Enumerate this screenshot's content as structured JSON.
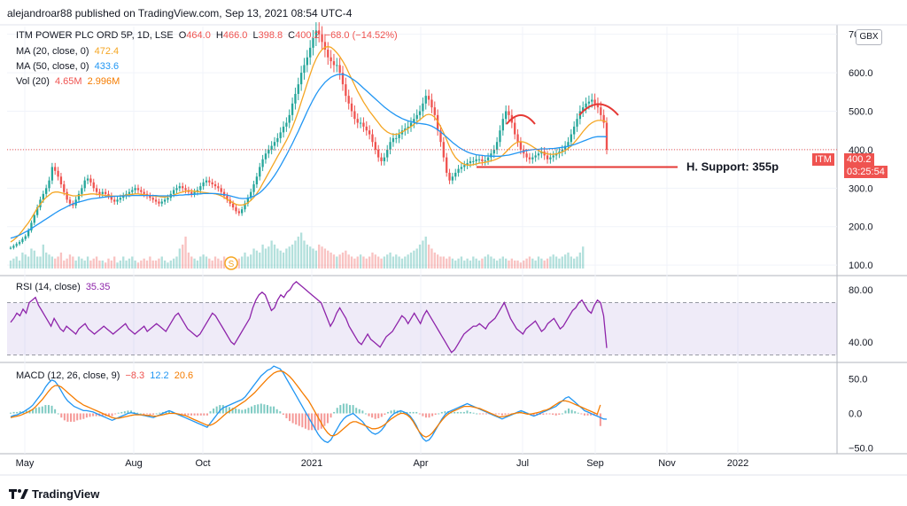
{
  "header": {
    "publisher": "alejandroar88 published on TradingView.com, Sep 13, 2021 08:54 UTC-4"
  },
  "legend": {
    "title": "ITM POWER PLC ORD 5P, 1D, LSE",
    "ohlc": {
      "o_label": "O",
      "o": "464.0",
      "h_label": "H",
      "h": "466.0",
      "l_label": "L",
      "l": "398.8",
      "c_label": "C",
      "c": "400.2",
      "chg": "−68.0 (−14.52%)"
    },
    "ma20_label": "MA (20, close, 0)",
    "ma20_value": "472.4",
    "ma50_label": "MA (50, close, 0)",
    "ma50_value": "433.6",
    "vol_label": "Vol (20)",
    "vol_value1": "4.65M",
    "vol_value2": "2.996M",
    "rsi_label": "RSI (14, close)",
    "rsi_value": "35.35",
    "macd_label": "MACD (12, 26, close, 9)",
    "macd_v1": "−8.3",
    "macd_v2": "12.2",
    "macd_v3": "20.6"
  },
  "currency_button": "GBX",
  "price_tag": {
    "symbol": "ITM",
    "price": "400.2",
    "countdown": "03:25:54"
  },
  "annotation": {
    "support_label": "H. Support: 355p",
    "support_level": 355
  },
  "dividend_marker": "S",
  "footer": {
    "brand": "TradingView"
  },
  "colors": {
    "up": "#26a69a",
    "down": "#ef5350",
    "ma20": "#f5a623",
    "ma50": "#2196f3",
    "rsi": "#8e24aa",
    "macd": "#2196f3",
    "signal": "#f57c00",
    "annot": "#e53935"
  },
  "chart_data": {
    "type": "line",
    "x_axis": {
      "tick_labels": [
        "May",
        "Aug",
        "Oct",
        "2021",
        "Apr",
        "Jul",
        "Sep",
        "Nov",
        "2022"
      ]
    },
    "price_panel": {
      "y_ticks": [
        "700.0",
        "600.0",
        "500.0",
        "400.0",
        "300.0",
        "200.0",
        "100.0"
      ],
      "ylim": [
        75,
        720
      ],
      "close_path": [
        145,
        150,
        155,
        160,
        168,
        175,
        190,
        210,
        230,
        250,
        270,
        285,
        300,
        320,
        355,
        345,
        330,
        310,
        290,
        270,
        260,
        255,
        270,
        285,
        300,
        320,
        325,
        315,
        300,
        290,
        285,
        290,
        285,
        280,
        270,
        265,
        270,
        275,
        280,
        285,
        290,
        295,
        300,
        295,
        290,
        285,
        280,
        275,
        270,
        265,
        260,
        265,
        270,
        275,
        285,
        295,
        300,
        305,
        300,
        295,
        290,
        285,
        290,
        295,
        305,
        315,
        320,
        315,
        310,
        305,
        300,
        290,
        280,
        270,
        260,
        250,
        240,
        235,
        245,
        260,
        275,
        290,
        310,
        330,
        355,
        375,
        390,
        400,
        410,
        420,
        430,
        445,
        460,
        470,
        490,
        520,
        545,
        570,
        600,
        620,
        640,
        665,
        690,
        710,
        700,
        680,
        660,
        640,
        630,
        620,
        620,
        600,
        570,
        540,
        520,
        500,
        480,
        470,
        470,
        460,
        450,
        440,
        420,
        400,
        380,
        370,
        380,
        400,
        420,
        430,
        430,
        440,
        450,
        455,
        460,
        470,
        480,
        490,
        500,
        520,
        540,
        530,
        510,
        490,
        450,
        420,
        380,
        340,
        320,
        330,
        340,
        350,
        355,
        360,
        365,
        370,
        370,
        375,
        375,
        370,
        372,
        380,
        390,
        400,
        420,
        450,
        480,
        500,
        490,
        470,
        440,
        420,
        400,
        390,
        380,
        375,
        380,
        385,
        390,
        395,
        385,
        375,
        380,
        385,
        390,
        395,
        400,
        410,
        420,
        440,
        460,
        480,
        500,
        510,
        520,
        525,
        530,
        520,
        510,
        490,
        470,
        400
      ],
      "ma20": [
        160,
        165,
        172,
        180,
        190,
        200,
        210,
        222,
        235,
        248,
        258,
        268,
        276,
        282,
        288,
        290,
        290,
        288,
        286,
        284,
        282,
        280,
        280,
        281,
        282,
        283,
        284,
        285,
        285,
        284,
        283,
        282,
        281,
        280,
        280,
        279,
        279,
        280,
        281,
        282,
        283,
        284,
        285,
        285,
        284,
        283,
        282,
        281,
        280,
        279,
        278,
        277,
        277,
        278,
        280,
        282,
        285,
        288,
        290,
        292,
        293,
        293,
        292,
        291,
        290,
        289,
        288,
        287,
        286,
        285,
        283,
        280,
        276,
        271,
        266,
        262,
        258,
        256,
        256,
        258,
        262,
        268,
        276,
        286,
        298,
        312,
        326,
        340,
        354,
        368,
        382,
        396,
        410,
        424,
        440,
        458,
        478,
        500,
        524,
        548,
        572,
        596,
        618,
        636,
        650,
        660,
        666,
        668,
        666,
        660,
        652,
        642,
        630,
        616,
        600,
        584,
        568,
        552,
        538,
        524,
        512,
        500,
        490,
        480,
        470,
        460,
        452,
        446,
        442,
        440,
        440,
        442,
        446,
        450,
        455,
        460,
        466,
        472,
        478,
        484,
        490,
        492,
        490,
        484,
        474,
        460,
        444,
        426,
        408,
        392,
        380,
        372,
        366,
        362,
        360,
        360,
        361,
        363,
        365,
        366,
        367,
        369,
        371,
        373,
        376,
        380,
        386,
        394,
        402,
        410,
        416,
        420,
        421,
        420,
        417,
        413,
        408,
        403,
        398,
        394,
        391,
        389,
        388,
        388,
        389,
        391,
        394,
        398,
        403,
        410,
        418,
        427,
        437,
        447,
        456,
        464,
        470,
        474,
        476,
        476,
        475,
        472
      ],
      "ma50": [
        170,
        172,
        175,
        178,
        182,
        186,
        190,
        195,
        200,
        205,
        210,
        215,
        220,
        225,
        230,
        235,
        240,
        244,
        248,
        252,
        256,
        259,
        262,
        264,
        266,
        268,
        270,
        272,
        273,
        274,
        275,
        276,
        277,
        278,
        278,
        279,
        279,
        279,
        280,
        280,
        280,
        281,
        281,
        281,
        281,
        281,
        281,
        281,
        281,
        281,
        280,
        280,
        280,
        280,
        280,
        281,
        281,
        282,
        282,
        283,
        283,
        284,
        284,
        285,
        285,
        286,
        286,
        286,
        286,
        286,
        285,
        284,
        283,
        282,
        280,
        278,
        276,
        274,
        273,
        273,
        274,
        276,
        279,
        283,
        288,
        295,
        303,
        312,
        322,
        333,
        345,
        358,
        372,
        386,
        401,
        416,
        432,
        448,
        465,
        482,
        499,
        515,
        530,
        544,
        556,
        566,
        575,
        582,
        588,
        592,
        595,
        596,
        596,
        594,
        590,
        585,
        580,
        574,
        567,
        560,
        553,
        546,
        539,
        532,
        525,
        518,
        511,
        505,
        499,
        494,
        489,
        485,
        481,
        478,
        475,
        473,
        471,
        469,
        468,
        467,
        466,
        464,
        461,
        457,
        452,
        446,
        440,
        433,
        426,
        419,
        413,
        407,
        402,
        398,
        394,
        391,
        389,
        387,
        386,
        385,
        384,
        384,
        383,
        383,
        383,
        383,
        384,
        385,
        386,
        388,
        390,
        392,
        394,
        396,
        398,
        399,
        400,
        401,
        401,
        402,
        402,
        402,
        403,
        403,
        404,
        405,
        406,
        407,
        409,
        411,
        413,
        416,
        419,
        422,
        425,
        428,
        431,
        433,
        434,
        434,
        434,
        433.6
      ],
      "volume_relative": [
        0.2,
        0.25,
        0.3,
        0.2,
        0.4,
        0.35,
        0.3,
        0.5,
        0.45,
        0.3,
        0.3,
        0.6,
        0.4,
        0.35,
        0.3,
        0.25,
        0.3,
        0.4,
        0.2,
        0.25,
        0.35,
        0.3,
        0.2,
        0.3,
        0.25,
        0.2,
        0.3,
        0.2,
        0.25,
        0.3,
        0.2,
        0.2,
        0.15,
        0.25,
        0.2,
        0.3,
        0.15,
        0.2,
        0.3,
        0.2,
        0.25,
        0.3,
        0.2,
        0.15,
        0.2,
        0.25,
        0.2,
        0.3,
        0.2,
        0.2,
        0.25,
        0.3,
        0.2,
        0.15,
        0.2,
        0.25,
        0.3,
        0.5,
        0.6,
        0.8,
        0.4,
        0.3,
        0.25,
        0.2,
        0.3,
        0.35,
        0.3,
        0.25,
        0.2,
        0.3,
        0.25,
        0.2,
        0.3,
        0.25,
        0.2,
        0.15,
        0.2,
        0.25,
        0.3,
        0.4,
        0.3,
        0.35,
        0.5,
        0.45,
        0.4,
        0.6,
        0.5,
        0.55,
        0.7,
        0.6,
        0.5,
        0.45,
        0.4,
        0.5,
        0.55,
        0.6,
        0.7,
        0.8,
        0.9,
        0.7,
        0.6,
        0.55,
        0.5,
        0.45,
        0.6,
        0.55,
        0.5,
        0.45,
        0.4,
        0.35,
        0.3,
        0.35,
        0.4,
        0.45,
        0.35,
        0.3,
        0.25,
        0.3,
        0.35,
        0.3,
        0.25,
        0.3,
        0.4,
        0.35,
        0.3,
        0.25,
        0.3,
        0.35,
        0.4,
        0.3,
        0.35,
        0.3,
        0.25,
        0.3,
        0.35,
        0.4,
        0.45,
        0.5,
        0.6,
        0.7,
        0.8,
        0.6,
        0.5,
        0.4,
        0.35,
        0.3,
        0.3,
        0.25,
        0.3,
        0.25,
        0.2,
        0.25,
        0.3,
        0.2,
        0.25,
        0.2,
        0.3,
        0.25,
        0.2,
        0.25,
        0.3,
        0.35,
        0.3,
        0.25,
        0.2,
        0.25,
        0.3,
        0.25,
        0.2,
        0.25,
        0.2,
        0.2,
        0.15,
        0.2,
        0.25,
        0.3,
        0.25,
        0.2,
        0.3,
        0.25,
        0.2,
        0.25,
        0.3,
        0.35,
        0.3,
        0.25,
        0.3,
        0.35,
        0.4,
        0.3,
        0.25,
        0.3,
        0.4,
        0.55
      ]
    },
    "rsi_panel": {
      "y_ticks": [
        "80.00",
        "40.00"
      ],
      "ylim": [
        25,
        90
      ],
      "band": [
        70,
        30
      ],
      "values": [
        55,
        58,
        62,
        60,
        65,
        62,
        70,
        72,
        74,
        68,
        64,
        60,
        56,
        52,
        58,
        54,
        50,
        48,
        52,
        50,
        48,
        46,
        50,
        52,
        54,
        50,
        48,
        46,
        48,
        50,
        52,
        50,
        48,
        46,
        48,
        50,
        52,
        54,
        50,
        48,
        46,
        48,
        50,
        52,
        48,
        50,
        52,
        54,
        52,
        50,
        48,
        52,
        56,
        60,
        62,
        58,
        54,
        50,
        48,
        46,
        44,
        46,
        50,
        54,
        58,
        62,
        60,
        56,
        52,
        48,
        44,
        40,
        38,
        42,
        46,
        50,
        54,
        58,
        66,
        72,
        76,
        78,
        76,
        70,
        64,
        66,
        72,
        76,
        74,
        78,
        80,
        84,
        86,
        84,
        82,
        80,
        78,
        76,
        74,
        72,
        70,
        64,
        58,
        52,
        56,
        62,
        66,
        62,
        58,
        52,
        48,
        44,
        40,
        38,
        42,
        46,
        42,
        40,
        38,
        36,
        40,
        44,
        46,
        48,
        52,
        56,
        60,
        58,
        54,
        58,
        62,
        58,
        54,
        60,
        64,
        60,
        56,
        52,
        48,
        44,
        40,
        36,
        32,
        34,
        38,
        42,
        46,
        48,
        50,
        52,
        52,
        54,
        52,
        50,
        54,
        56,
        58,
        62,
        66,
        70,
        64,
        58,
        54,
        50,
        48,
        46,
        50,
        52,
        54,
        56,
        52,
        48,
        50,
        54,
        56,
        58,
        54,
        50,
        52,
        56,
        60,
        64,
        66,
        70,
        72,
        68,
        64,
        62,
        68,
        72,
        70,
        60,
        35.35
      ]
    },
    "macd_panel": {
      "y_ticks": [
        "50.0",
        "0.0",
        "−50.0"
      ],
      "ylim": [
        -58,
        72
      ],
      "macd": [
        -5,
        -3,
        -2,
        0,
        2,
        5,
        8,
        12,
        18,
        24,
        30,
        38,
        44,
        48,
        46,
        40,
        32,
        24,
        18,
        14,
        10,
        8,
        6,
        4,
        4,
        3,
        2,
        0,
        -2,
        -4,
        -6,
        -8,
        -10,
        -8,
        -6,
        -4,
        -2,
        0,
        1,
        0,
        -1,
        -2,
        -3,
        -4,
        -5,
        -6,
        -4,
        -2,
        0,
        2,
        4,
        2,
        0,
        -2,
        -4,
        -6,
        -8,
        -10,
        -12,
        -14,
        -16,
        -18,
        -20,
        -14,
        -8,
        -2,
        4,
        8,
        10,
        12,
        14,
        16,
        18,
        20,
        24,
        30,
        36,
        42,
        48,
        54,
        58,
        62,
        64,
        68,
        66,
        64,
        58,
        50,
        42,
        34,
        26,
        18,
        10,
        2,
        -6,
        -14,
        -22,
        -30,
        -36,
        -40,
        -42,
        -38,
        -30,
        -22,
        -14,
        -8,
        -4,
        -2,
        0,
        -4,
        -8,
        -12,
        -18,
        -24,
        -28,
        -30,
        -28,
        -24,
        -18,
        -10,
        -4,
        0,
        2,
        4,
        2,
        0,
        -4,
        -10,
        -18,
        -28,
        -36,
        -40,
        -38,
        -32,
        -24,
        -16,
        -8,
        -2,
        2,
        4,
        6,
        8,
        10,
        12,
        14,
        12,
        10,
        8,
        6,
        4,
        2,
        0,
        -2,
        -4,
        -6,
        -8,
        -6,
        -4,
        -2,
        0,
        2,
        4,
        2,
        0,
        -2,
        -4,
        -2,
        0,
        2,
        4,
        6,
        8,
        10,
        14,
        18,
        22,
        24,
        20,
        16,
        12,
        8,
        4,
        2,
        0,
        -2,
        -4,
        -6,
        -8,
        -8.3
      ],
      "signal": [
        -6,
        -5,
        -4,
        -3,
        -1,
        1,
        3,
        6,
        10,
        15,
        20,
        26,
        32,
        37,
        40,
        40,
        38,
        34,
        30,
        26,
        22,
        18,
        15,
        12,
        10,
        8,
        6,
        4,
        2,
        0,
        -2,
        -4,
        -6,
        -7,
        -7,
        -6,
        -5,
        -4,
        -3,
        -2,
        -2,
        -2,
        -2,
        -3,
        -3,
        -4,
        -4,
        -3,
        -2,
        -1,
        0,
        0,
        0,
        -1,
        -2,
        -3,
        -5,
        -7,
        -9,
        -11,
        -13,
        -15,
        -17,
        -17,
        -15,
        -12,
        -8,
        -4,
        0,
        3,
        6,
        9,
        12,
        15,
        18,
        22,
        26,
        30,
        35,
        40,
        45,
        50,
        54,
        58,
        60,
        61,
        60,
        57,
        53,
        48,
        42,
        36,
        30,
        24,
        18,
        10,
        2,
        -6,
        -14,
        -22,
        -28,
        -32,
        -32,
        -30,
        -26,
        -22,
        -18,
        -14,
        -12,
        -12,
        -14,
        -16,
        -18,
        -20,
        -22,
        -22,
        -21,
        -19,
        -16,
        -12,
        -8,
        -5,
        -2,
        0,
        0,
        -2,
        -6,
        -12,
        -20,
        -27,
        -32,
        -34,
        -32,
        -28,
        -22,
        -16,
        -10,
        -5,
        -1,
        2,
        4,
        6,
        8,
        10,
        10,
        10,
        9,
        8,
        7,
        5,
        3,
        1,
        -1,
        -3,
        -5,
        -5,
        -4,
        -3,
        -1,
        0,
        1,
        1,
        0,
        -1,
        -1,
        0,
        1,
        2,
        4,
        5,
        7,
        10,
        13,
        16,
        18,
        18,
        17,
        15,
        13,
        11,
        9,
        7,
        5,
        3,
        1,
        -1,
        12.2
      ]
    }
  }
}
